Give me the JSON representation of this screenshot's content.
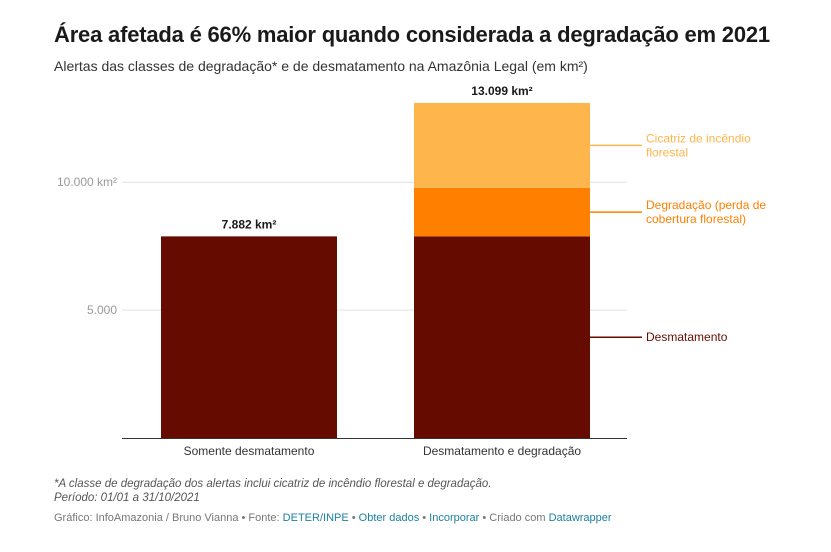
{
  "title": "Área afetada é 66% maior quando considerada a degradação em 2021",
  "subtitle": "Alertas das classes de degradação* e de desmatamento na Amazônia Legal (em km²)",
  "chart_data": {
    "type": "bar",
    "stacked": true,
    "categories": [
      "Somente desmatamento",
      "Desmatamento e degradação"
    ],
    "series": [
      {
        "name": "Desmatamento",
        "values": [
          7882,
          7882
        ],
        "color": "#650b00"
      },
      {
        "name": "Degradação (perda de cobertura florestal)",
        "values": [
          0,
          1900
        ],
        "color": "#ff8001"
      },
      {
        "name": "Cicatriz de incêndio florestal",
        "values": [
          0,
          3317
        ],
        "color": "#feb54b"
      }
    ],
    "totals": [
      7882,
      13099
    ],
    "total_labels": [
      "7.882 km²",
      "13.099 km²"
    ],
    "series_labels": [
      {
        "lines": [
          "Cicatriz de incêndio",
          "florestal"
        ],
        "color": "#feb54b"
      },
      {
        "lines": [
          "Degradação (perda de",
          "cobertura florestal)"
        ],
        "color": "#ff8001"
      },
      {
        "lines": [
          "Desmatamento"
        ],
        "color": "#650b00"
      }
    ],
    "y_ticks": [
      {
        "value": 10000,
        "label": "10.000 km²"
      },
      {
        "value": 5000,
        "label": "5.000"
      }
    ],
    "ylim": [
      0,
      13099
    ],
    "grid": true,
    "legend": "right of bars, inline labels"
  },
  "notes": [
    "*A classe de degradação dos alertas inclui cicatriz de incêndio florestal e degradação.",
    "Período: 01/01 a 31/10/2021"
  ],
  "footer": {
    "prefix": "Gráfico: InfoAmazonia / Bruno Vianna • Fonte: ",
    "source_link": "DETER/INPE",
    "sep1": " • ",
    "get_data": "Obter dados",
    "sep2": " • ",
    "embed": "Incorporar",
    "sep3": " • Criado com ",
    "tool": "Datawrapper"
  }
}
